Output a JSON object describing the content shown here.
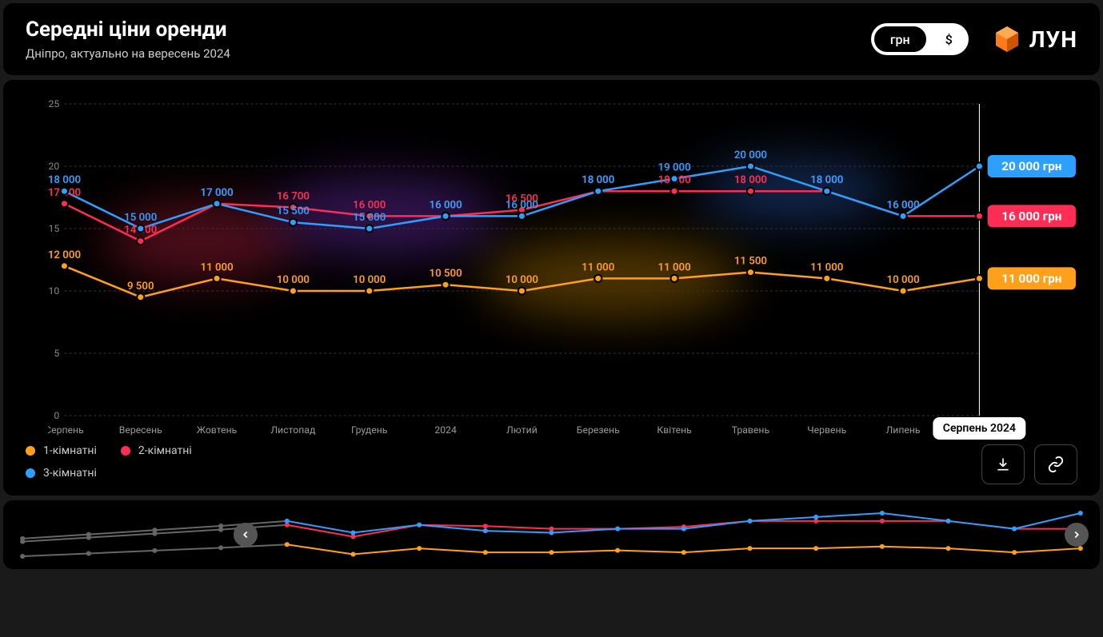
{
  "header": {
    "title": "Середні ціни оренди",
    "subtitle": "Дніпро, актуально на вересень 2024",
    "currency_uah": "грн",
    "currency_usd": "$",
    "logo_text": "ЛУН",
    "logo_color": "#ff7a1a"
  },
  "chart": {
    "y_min": 0,
    "y_max": 25,
    "y_ticks": [
      0,
      5,
      10,
      15,
      20,
      25
    ],
    "x_labels": [
      "Серпень",
      "Вересень",
      "Жовтень",
      "Листопад",
      "Грудень",
      "2024",
      "Лютий",
      "Березень",
      "Квітень",
      "Травень",
      "Червень",
      "Липень"
    ],
    "hover_label": "Серпень 2024",
    "background": "#000000",
    "grid_color": "#333333",
    "axis_text_color": "#888888",
    "series": [
      {
        "name": "1-кімнатні",
        "color": "#ff9f1a",
        "values": [
          12000,
          9500,
          11000,
          10000,
          10000,
          10500,
          10000,
          11000,
          11000,
          11500,
          11000,
          10000,
          11000
        ],
        "end_label": "11 000 грн"
      },
      {
        "name": "2-кімнатні",
        "color": "#ff2d55",
        "values": [
          17000,
          14000,
          17000,
          16700,
          16000,
          16000,
          16500,
          18000,
          18000,
          18000,
          18000,
          16000,
          16000
        ],
        "end_label": "16 000 грн"
      },
      {
        "name": "3-кімнатні",
        "color": "#2d9fff",
        "values": [
          18000,
          15000,
          17000,
          15500,
          15000,
          16000,
          16000,
          18000,
          19000,
          20000,
          18000,
          16000,
          20000
        ],
        "end_label": "20 000 грн"
      }
    ]
  },
  "legend": {
    "items": [
      "1-кімнатні",
      "2-кімнатні",
      "3-кімнатні"
    ]
  },
  "timeline": {
    "greyed_points": 4,
    "series_colors": [
      "#ff9f1a",
      "#ff2d55",
      "#2d9fff"
    ],
    "grey_color": "#666666"
  }
}
